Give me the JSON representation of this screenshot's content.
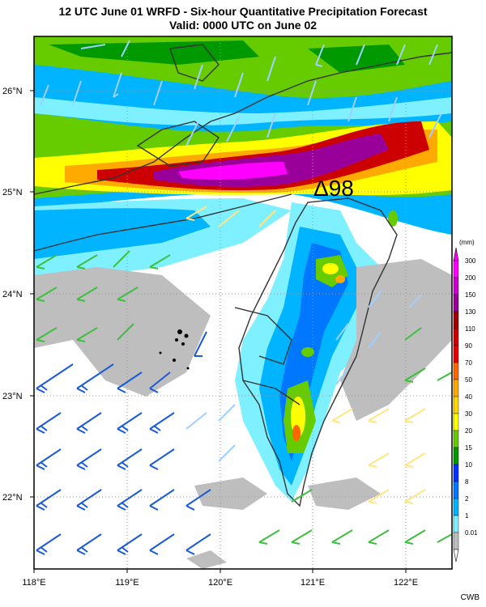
{
  "title": {
    "line1": "12 UTC June 01 WRFD - Six-hour Quantitative Precipitation Forecast",
    "line2": "Valid: 0000 UTC on June 02"
  },
  "lat_labels": [
    "26°N",
    "25°N",
    "24°N",
    "23°N",
    "22°N"
  ],
  "lon_labels": [
    "118°E",
    "119°E",
    "120°E",
    "121°E",
    "122°E"
  ],
  "annotation": "Δ98",
  "colorbar": {
    "unit": "(mm)",
    "levels": [
      "300",
      "200",
      "150",
      "130",
      "110",
      "90",
      "70",
      "50",
      "40",
      "30",
      "20",
      "15",
      "10",
      "8",
      "2",
      "1",
      "0.01"
    ],
    "colors": [
      "#ff00ff",
      "#cc00cc",
      "#990099",
      "#a00000",
      "#cc0000",
      "#e60000",
      "#ff6600",
      "#ffaa00",
      "#ffd700",
      "#ffff00",
      "#66cc00",
      "#009900",
      "#0033ff",
      "#0077ff",
      "#00b4ff",
      "#7ff0ff",
      "#bebebe"
    ]
  },
  "credit": "CWB"
}
